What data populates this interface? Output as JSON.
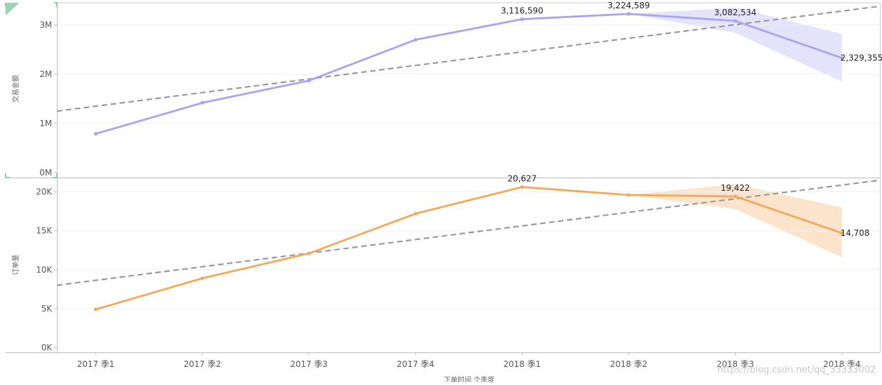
{
  "chart_data": [
    {
      "type": "line",
      "ylabel": "交易金额",
      "yticks": [
        "0M",
        "1M",
        "2M",
        "3M"
      ],
      "ylim": [
        0,
        3450000
      ],
      "categories": [
        "2017 季1",
        "2017 季2",
        "2017 季3",
        "2017 季4",
        "2018 季1",
        "2018 季2",
        "2018 季3",
        "2018 季4"
      ],
      "series": [
        {
          "values": [
            790000,
            1420000,
            1870000,
            2700000,
            3116590,
            3224589,
            3082534,
            2329355
          ],
          "color": "#a9a4f2"
        }
      ],
      "data_labels": [
        {
          "index": 4,
          "text": "3,116,590"
        },
        {
          "index": 5,
          "text": "3,224,589"
        },
        {
          "index": 6,
          "text": "3,082,534"
        },
        {
          "index": 7,
          "text": "2,329,355"
        }
      ],
      "trend_line": {
        "start": 1250000,
        "end": 3380000,
        "color": "#999999",
        "style": "dashed"
      },
      "forecast_band": {
        "start_index": 5,
        "upper": [
          3224589,
          3350000,
          2820000
        ],
        "lower": [
          3224589,
          2840000,
          1850000
        ],
        "color": "#dcdaf9"
      },
      "grid": true
    },
    {
      "type": "line",
      "ylabel": "订单量",
      "xlabel": "下单时间 个季度",
      "yticks": [
        "0K",
        "5K",
        "10K",
        "15K",
        "20K"
      ],
      "ylim": [
        0,
        21750
      ],
      "categories": [
        "2017 季1",
        "2017 季2",
        "2017 季3",
        "2017 季4",
        "2018 季1",
        "2018 季2",
        "2018 季3",
        "2018 季4"
      ],
      "series": [
        {
          "values": [
            4900,
            8900,
            12100,
            17200,
            20627,
            19600,
            19422,
            14708
          ],
          "color": "#f4a95a"
        }
      ],
      "data_labels": [
        {
          "index": 4,
          "text": "20,627"
        },
        {
          "index": 6,
          "text": "19,422"
        },
        {
          "index": 7,
          "text": "14,708"
        }
      ],
      "trend_line": {
        "start": 8000,
        "end": 21500,
        "color": "#999999",
        "style": "dashed"
      },
      "forecast_band": {
        "start_index": 5,
        "upper": [
          19600,
          21000,
          18000
        ],
        "lower": [
          19600,
          17800,
          11600
        ],
        "color": "#fbd9b9"
      },
      "grid": true
    }
  ],
  "watermark": "https://blog.csdn.net/qq_33333002"
}
